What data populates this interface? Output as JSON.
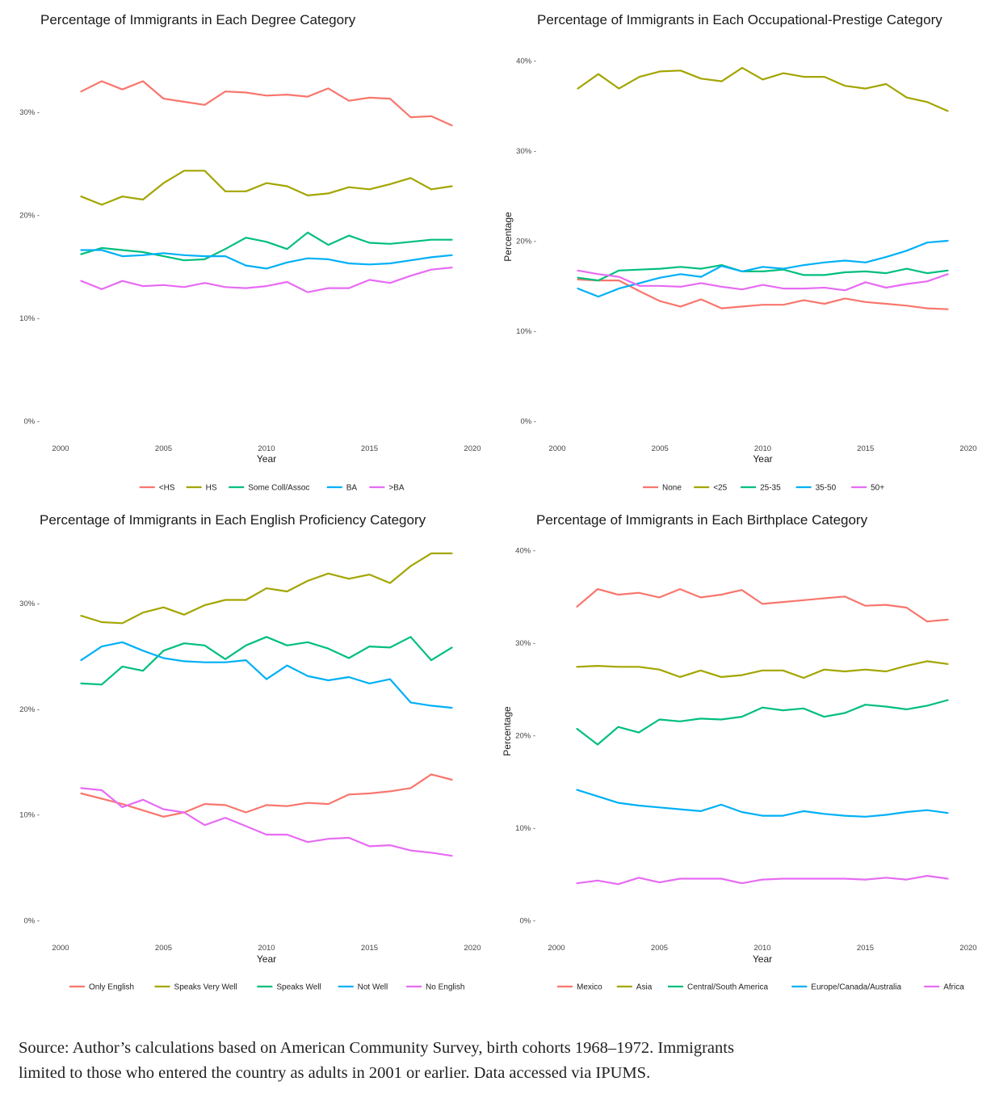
{
  "chart_data": [
    {
      "type": "line",
      "title": "Percentage of Immigrants in Each Degree Category",
      "xlabel": "Year",
      "ylabel": "",
      "xlim": [
        2000,
        2020
      ],
      "ylim": [
        0,
        35
      ],
      "x_ticks": [
        2000,
        2005,
        2010,
        2015,
        2020
      ],
      "x_tick_labels": [
        "2000",
        "2005",
        "2010",
        "2015",
        "2020"
      ],
      "y_ticks": [
        0,
        10,
        20,
        30
      ],
      "y_tick_labels": [
        "0% -",
        "10% -",
        "20% -",
        "30% -"
      ],
      "grid": false,
      "legend_position": "bottom",
      "x": [
        2001,
        2002,
        2003,
        2004,
        2005,
        2006,
        2007,
        2008,
        2009,
        2010,
        2011,
        2012,
        2013,
        2014,
        2015,
        2016,
        2017,
        2018,
        2019
      ],
      "series": [
        {
          "name": "<HS",
          "color": "#F8766D",
          "values": [
            32.0,
            33.0,
            32.2,
            33.0,
            31.3,
            31.0,
            30.7,
            32.0,
            31.9,
            31.6,
            31.7,
            31.5,
            32.3,
            31.1,
            31.4,
            31.3,
            29.5,
            29.6,
            28.7
          ]
        },
        {
          "name": "HS",
          "color": "#A3A500",
          "values": [
            21.8,
            21.0,
            21.8,
            21.5,
            23.1,
            24.3,
            24.3,
            22.3,
            22.3,
            23.1,
            22.8,
            21.9,
            22.1,
            22.7,
            22.5,
            23.0,
            23.6,
            22.5,
            22.8
          ]
        },
        {
          "name": "Some Coll/Assoc",
          "color": "#00BF7D",
          "values": [
            16.2,
            16.8,
            16.6,
            16.4,
            16.0,
            15.6,
            15.7,
            16.7,
            17.8,
            17.4,
            16.7,
            18.3,
            17.1,
            18.0,
            17.3,
            17.2,
            17.4,
            17.6,
            17.6
          ]
        },
        {
          "name": "BA",
          "color": "#00B0F6",
          "values": [
            16.6,
            16.6,
            16.0,
            16.1,
            16.3,
            16.1,
            16.0,
            16.0,
            15.1,
            14.8,
            15.4,
            15.8,
            15.7,
            15.3,
            15.2,
            15.3,
            15.6,
            15.9,
            16.1
          ]
        },
        {
          "name": ">BA",
          "color": "#E76BF3",
          "values": [
            13.6,
            12.8,
            13.6,
            13.1,
            13.2,
            13.0,
            13.4,
            13.0,
            12.9,
            13.1,
            13.5,
            12.5,
            12.9,
            12.9,
            13.7,
            13.4,
            14.1,
            14.7,
            14.9
          ]
        }
      ]
    },
    {
      "type": "line",
      "title": "Percentage of  Immigrants in Each Occupational-Prestige Category",
      "xlabel": "Year",
      "ylabel": "Percentage",
      "xlim": [
        2000,
        2020
      ],
      "ylim": [
        0,
        40
      ],
      "x_ticks": [
        2000,
        2005,
        2010,
        2015,
        2020
      ],
      "x_tick_labels": [
        "2000",
        "2005",
        "2010",
        "2015",
        "2020"
      ],
      "y_ticks": [
        0,
        10,
        20,
        30,
        40
      ],
      "y_tick_labels": [
        "0% -",
        "10% -",
        "20% -",
        "30% -",
        "40% -"
      ],
      "grid": false,
      "legend_position": "bottom",
      "x": [
        2001,
        2002,
        2003,
        2004,
        2005,
        2006,
        2007,
        2008,
        2009,
        2010,
        2011,
        2012,
        2013,
        2014,
        2015,
        2016,
        2017,
        2018,
        2019
      ],
      "series": [
        {
          "name": "None",
          "color": "#F8766D",
          "values": [
            15.7,
            15.6,
            15.6,
            14.4,
            13.3,
            12.7,
            13.5,
            12.5,
            12.7,
            12.9,
            12.9,
            13.4,
            13.0,
            13.6,
            13.2,
            13.0,
            12.8,
            12.5,
            12.4
          ]
        },
        {
          "name": "<25",
          "color": "#A3A500",
          "values": [
            36.9,
            38.5,
            36.9,
            38.2,
            38.8,
            38.9,
            38.0,
            37.7,
            39.2,
            37.9,
            38.6,
            38.2,
            38.2,
            37.2,
            36.9,
            37.4,
            35.9,
            35.4,
            34.4
          ]
        },
        {
          "name": "25-35",
          "color": "#00BF7D",
          "values": [
            15.9,
            15.6,
            16.7,
            16.8,
            16.9,
            17.1,
            16.9,
            17.3,
            16.6,
            16.6,
            16.8,
            16.2,
            16.2,
            16.5,
            16.6,
            16.4,
            16.9,
            16.4,
            16.7
          ]
        },
        {
          "name": "35-50",
          "color": "#00B0F6",
          "values": [
            14.7,
            13.8,
            14.7,
            15.3,
            15.9,
            16.3,
            16.0,
            17.2,
            16.6,
            17.1,
            16.9,
            17.3,
            17.6,
            17.8,
            17.6,
            18.2,
            18.9,
            19.8,
            20.0
          ]
        },
        {
          "name": "50+",
          "color": "#E76BF3",
          "values": [
            16.7,
            16.3,
            16.0,
            15.0,
            15.0,
            14.9,
            15.3,
            14.9,
            14.6,
            15.1,
            14.7,
            14.7,
            14.8,
            14.5,
            15.4,
            14.8,
            15.2,
            15.5,
            16.3
          ]
        }
      ]
    },
    {
      "type": "line",
      "title": "Percentage of Immigrants in Each English Proficiency Category",
      "xlabel": "Year",
      "ylabel": "",
      "xlim": [
        2000,
        2020
      ],
      "ylim": [
        0,
        35
      ],
      "x_ticks": [
        2000,
        2005,
        2010,
        2015,
        2020
      ],
      "x_tick_labels": [
        "2000",
        "2005",
        "2010",
        "2015",
        "2020"
      ],
      "y_ticks": [
        0,
        10,
        20,
        30
      ],
      "y_tick_labels": [
        "0% -",
        "10% -",
        "20% -",
        "30% -"
      ],
      "grid": false,
      "legend_position": "bottom",
      "x": [
        2001,
        2002,
        2003,
        2004,
        2005,
        2006,
        2007,
        2008,
        2009,
        2010,
        2011,
        2012,
        2013,
        2014,
        2015,
        2016,
        2017,
        2018,
        2019
      ],
      "series": [
        {
          "name": "Only English",
          "color": "#F8766D",
          "values": [
            12.0,
            11.5,
            11.0,
            10.4,
            9.8,
            10.2,
            11.0,
            10.9,
            10.2,
            10.9,
            10.8,
            11.1,
            11.0,
            11.9,
            12.0,
            12.2,
            12.5,
            13.8,
            13.3
          ]
        },
        {
          "name": "Speaks Very Well",
          "color": "#A3A500",
          "values": [
            28.8,
            28.2,
            28.1,
            29.1,
            29.6,
            28.9,
            29.8,
            30.3,
            30.3,
            31.4,
            31.1,
            32.1,
            32.8,
            32.3,
            32.7,
            31.9,
            33.5,
            34.7,
            34.7
          ]
        },
        {
          "name": "Speaks Well",
          "color": "#00BF7D",
          "values": [
            22.4,
            22.3,
            24.0,
            23.6,
            25.5,
            26.2,
            26.0,
            24.7,
            26.0,
            26.8,
            26.0,
            26.3,
            25.7,
            24.8,
            25.9,
            25.8,
            26.8,
            24.6,
            25.8
          ]
        },
        {
          "name": "Not Well",
          "color": "#00B0F6",
          "values": [
            24.6,
            25.9,
            26.3,
            25.5,
            24.8,
            24.5,
            24.4,
            24.4,
            24.6,
            22.8,
            24.1,
            23.1,
            22.7,
            23.0,
            22.4,
            22.8,
            20.6,
            20.3,
            20.1
          ]
        },
        {
          "name": "No English",
          "color": "#E76BF3",
          "values": [
            12.5,
            12.3,
            10.7,
            11.4,
            10.5,
            10.2,
            9.0,
            9.7,
            8.9,
            8.1,
            8.1,
            7.4,
            7.7,
            7.8,
            7.0,
            7.1,
            6.6,
            6.4,
            6.1
          ]
        }
      ]
    },
    {
      "type": "line",
      "title": "Percentage of Immigrants in Each Birthplace Category",
      "xlabel": "Year",
      "ylabel": "Percentage",
      "xlim": [
        2000,
        2020
      ],
      "ylim": [
        0,
        40
      ],
      "x_ticks": [
        2000,
        2005,
        2010,
        2015,
        2020
      ],
      "x_tick_labels": [
        "2000",
        "2005",
        "2010",
        "2015",
        "2020"
      ],
      "y_ticks": [
        0,
        10,
        20,
        30,
        40
      ],
      "y_tick_labels": [
        "0% -",
        "10% -",
        "20% -",
        "30% -",
        "40% -"
      ],
      "grid": false,
      "legend_position": "bottom",
      "x": [
        2001,
        2002,
        2003,
        2004,
        2005,
        2006,
        2007,
        2008,
        2009,
        2010,
        2011,
        2012,
        2013,
        2014,
        2015,
        2016,
        2017,
        2018,
        2019
      ],
      "series": [
        {
          "name": "Mexico",
          "color": "#F8766D",
          "values": [
            33.9,
            35.8,
            35.2,
            35.4,
            34.9,
            35.8,
            34.9,
            35.2,
            35.7,
            34.2,
            34.4,
            34.6,
            34.8,
            35.0,
            34.0,
            34.1,
            33.8,
            32.3,
            32.5
          ]
        },
        {
          "name": "Asia",
          "color": "#A3A500",
          "values": [
            27.4,
            27.5,
            27.4,
            27.4,
            27.1,
            26.3,
            27.0,
            26.3,
            26.5,
            27.0,
            27.0,
            26.2,
            27.1,
            26.9,
            27.1,
            26.9,
            27.5,
            28.0,
            27.7
          ]
        },
        {
          "name": "Central/South America",
          "color": "#00BF7D",
          "values": [
            20.7,
            19.0,
            20.9,
            20.3,
            21.7,
            21.5,
            21.8,
            21.7,
            22.0,
            23.0,
            22.7,
            22.9,
            22.0,
            22.4,
            23.3,
            23.1,
            22.8,
            23.2,
            23.8
          ]
        },
        {
          "name": "Europe/Canada/Australia",
          "color": "#00B0F6",
          "values": [
            14.1,
            13.4,
            12.7,
            12.4,
            12.2,
            12.0,
            11.8,
            12.5,
            11.7,
            11.3,
            11.3,
            11.8,
            11.5,
            11.3,
            11.2,
            11.4,
            11.7,
            11.9,
            11.6
          ]
        },
        {
          "name": "Africa",
          "color": "#E76BF3",
          "values": [
            4.0,
            4.3,
            3.9,
            4.6,
            4.1,
            4.5,
            4.5,
            4.5,
            4.0,
            4.4,
            4.5,
            4.5,
            4.5,
            4.5,
            4.4,
            4.6,
            4.4,
            4.8,
            4.5
          ]
        }
      ]
    }
  ],
  "source_note": {
    "line1": "Source: Author’s calculations based on American Community Survey, birth cohorts 1968–1972. Immigrants",
    "line2": "limited to those who entered the country as adults in 2001 or earlier. Data accessed via IPUMS."
  }
}
